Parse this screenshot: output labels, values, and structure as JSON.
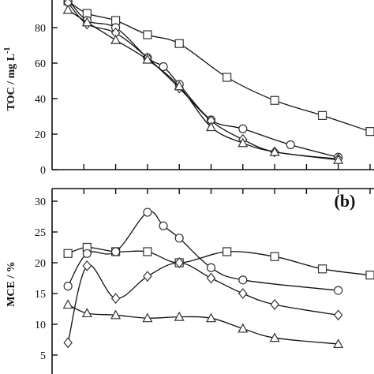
{
  "chart_data": [
    {
      "type": "line",
      "panel_label": "",
      "ylabel": "TOC / mg L",
      "ylabel_superscript": "-1",
      "xlabel": "",
      "ylim": [
        0,
        100
      ],
      "yticks": [
        0,
        20,
        40,
        60,
        80
      ],
      "xlim": [
        0,
        10
      ],
      "xticks": [
        1,
        2,
        3,
        4,
        5,
        6,
        7,
        8,
        9,
        10
      ],
      "series": [
        {
          "marker": "square",
          "points": [
            [
              0.5,
              95
            ],
            [
              1.1,
              88
            ],
            [
              2.0,
              84
            ],
            [
              3.0,
              76
            ],
            [
              4.0,
              71
            ],
            [
              5.5,
              52
            ],
            [
              7.0,
              39
            ],
            [
              8.5,
              30.5
            ],
            [
              10.0,
              21.5
            ]
          ]
        },
        {
          "marker": "circle",
          "points": [
            [
              0.5,
              96
            ],
            [
              1.1,
              84
            ],
            [
              2.0,
              80
            ],
            [
              3.0,
              63
            ],
            [
              3.5,
              58
            ],
            [
              4.0,
              48
            ],
            [
              5.0,
              28
            ],
            [
              6.0,
              23
            ],
            [
              7.5,
              14
            ],
            [
              9.0,
              7
            ]
          ]
        },
        {
          "marker": "diamond",
          "points": [
            [
              0.5,
              94
            ],
            [
              1.1,
              82
            ],
            [
              2.0,
              77
            ],
            [
              3.0,
              63
            ],
            [
              4.0,
              46
            ],
            [
              5.0,
              27.5
            ],
            [
              6.0,
              17
            ],
            [
              7.0,
              10
            ],
            [
              9.0,
              6
            ]
          ]
        },
        {
          "marker": "triangle",
          "points": [
            [
              0.5,
              90
            ],
            [
              1.1,
              83
            ],
            [
              2.0,
              73
            ],
            [
              3.0,
              62
            ],
            [
              4.0,
              47
            ],
            [
              5.0,
              24
            ],
            [
              6.0,
              15
            ],
            [
              7.0,
              10
            ],
            [
              9.0,
              5.5
            ]
          ]
        }
      ]
    },
    {
      "type": "line",
      "panel_label": "(b)",
      "ylabel": "MCE / %",
      "xlabel": "",
      "ylim": [
        2.5,
        33
      ],
      "yticks": [
        5,
        10,
        15,
        20,
        25,
        30
      ],
      "xlim": [
        0,
        10
      ],
      "xticks": [
        1,
        2,
        3,
        4,
        5,
        6,
        7,
        8,
        9,
        10
      ],
      "series": [
        {
          "marker": "square",
          "points": [
            [
              0.5,
              21.5
            ],
            [
              1.1,
              22.5
            ],
            [
              2.0,
              21.8
            ],
            [
              3.0,
              21.8
            ],
            [
              4.0,
              20.0
            ],
            [
              5.5,
              21.8
            ],
            [
              7.0,
              21.0
            ],
            [
              8.5,
              19.0
            ],
            [
              10.0,
              18.0
            ]
          ]
        },
        {
          "marker": "circle",
          "points": [
            [
              0.5,
              16.2
            ],
            [
              1.1,
              21.5
            ],
            [
              2.0,
              21.8
            ],
            [
              3.0,
              28.2
            ],
            [
              3.5,
              26.0
            ],
            [
              4.0,
              24.0
            ],
            [
              5.0,
              19.2
            ],
            [
              6.0,
              17.2
            ],
            [
              9.0,
              15.5
            ]
          ]
        },
        {
          "marker": "diamond",
          "points": [
            [
              0.5,
              7.0
            ],
            [
              1.1,
              19.5
            ],
            [
              2.0,
              14.2
            ],
            [
              3.0,
              17.8
            ],
            [
              4.0,
              20.0
            ],
            [
              5.0,
              17.5
            ],
            [
              6.0,
              15.0
            ],
            [
              7.0,
              13.2
            ],
            [
              9.0,
              11.5
            ]
          ]
        },
        {
          "marker": "triangle",
          "points": [
            [
              0.5,
              13.2
            ],
            [
              1.1,
              11.8
            ],
            [
              2.0,
              11.5
            ],
            [
              3.0,
              11.0
            ],
            [
              4.0,
              11.2
            ],
            [
              5.0,
              11.0
            ],
            [
              6.0,
              9.3
            ],
            [
              7.0,
              7.8
            ],
            [
              9.0,
              6.8
            ]
          ]
        }
      ]
    }
  ]
}
